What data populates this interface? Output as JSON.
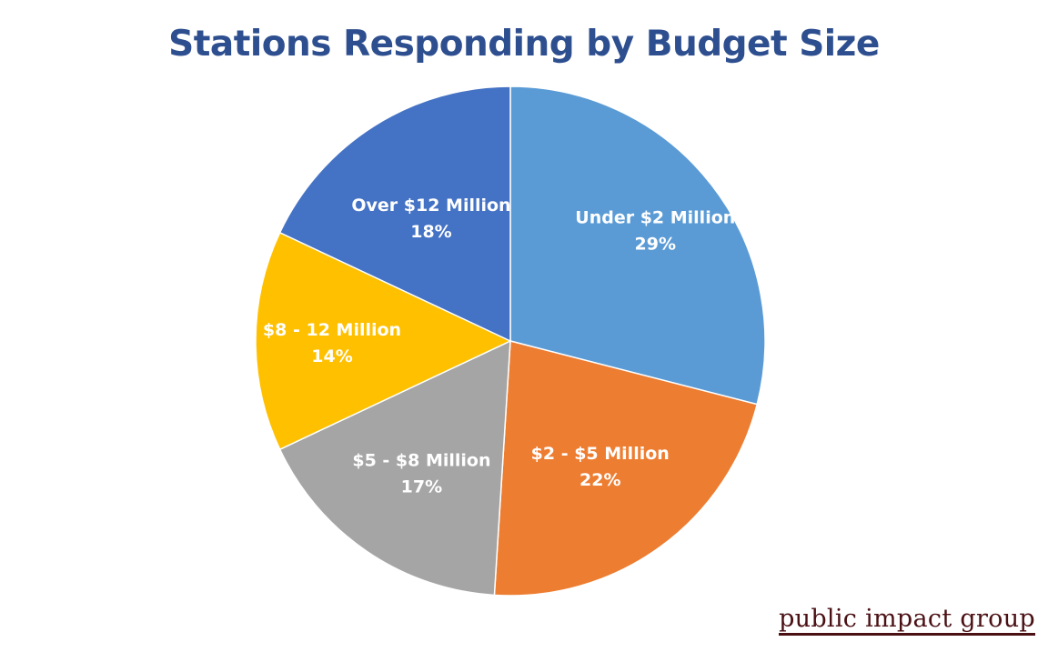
{
  "chart_data": {
    "type": "pie",
    "title": "Stations Responding by Budget Size",
    "slices": [
      {
        "label": "Under $2 Million",
        "value": 29,
        "value_label": "29%",
        "color": "#5b9bd5"
      },
      {
        "label": "$2 - $5 Million",
        "value": 22,
        "value_label": "22%",
        "color": "#ed7d31"
      },
      {
        "label": "$5 - $8 Million",
        "value": 17,
        "value_label": "17%",
        "color": "#a5a5a5"
      },
      {
        "label": "$8 - 12 Million",
        "value": 14,
        "value_label": "14%",
        "color": "#ffc000"
      },
      {
        "label": "Over $12 Million",
        "value": 18,
        "value_label": "18%",
        "color": "#4472c4"
      }
    ],
    "start": "12 o'clock",
    "direction": "clockwise",
    "legend": "none"
  },
  "brand": {
    "text": "public impact group",
    "color": "#4a1014"
  }
}
